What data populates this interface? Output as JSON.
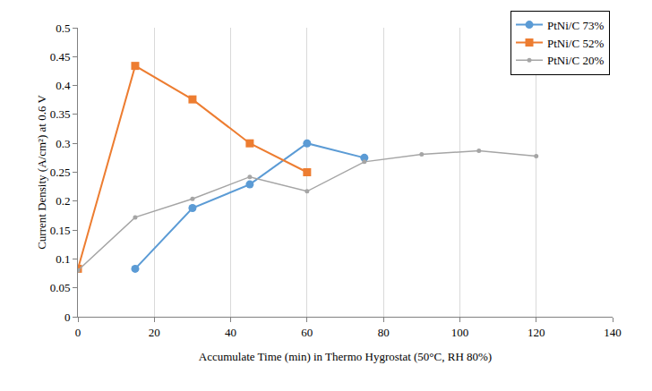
{
  "chart_data": {
    "type": "line",
    "x_label": "Accumulate Time (min) in Thermo Hygrostat (50°C, RH 80%)",
    "y_label": "Current Density (A/cm²) at 0.6 V",
    "xlim": [
      0,
      140
    ],
    "xticks": [
      0,
      20,
      40,
      60,
      80,
      100,
      120,
      140
    ],
    "ylim": [
      0,
      0.5
    ],
    "yticks": [
      0,
      0.05,
      0.1,
      0.15,
      0.2,
      0.25,
      0.3,
      0.35,
      0.4,
      0.45,
      0.5
    ],
    "grid": true,
    "legend": "top right",
    "series": [
      {
        "name": "PtNi/C 73%",
        "color": "#5b9bd5",
        "marker": "circle",
        "x": [
          15,
          30,
          45,
          60,
          75
        ],
        "values": [
          0.083,
          0.188,
          0.229,
          0.3,
          0.275
        ]
      },
      {
        "name": "PtNi/C 52%",
        "color": "#ed7d31",
        "marker": "square",
        "x": [
          0,
          15,
          30,
          45,
          60
        ],
        "values": [
          0.083,
          0.434,
          0.376,
          0.3,
          0.25
        ]
      },
      {
        "name": "PtNi/C 20%",
        "color": "#a5a5a5",
        "marker": "circle",
        "x": [
          0,
          15,
          30,
          45,
          60,
          75,
          90,
          105,
          120
        ],
        "values": [
          0.08,
          0.172,
          0.204,
          0.242,
          0.217,
          0.268,
          0.281,
          0.287,
          0.278
        ]
      }
    ]
  }
}
